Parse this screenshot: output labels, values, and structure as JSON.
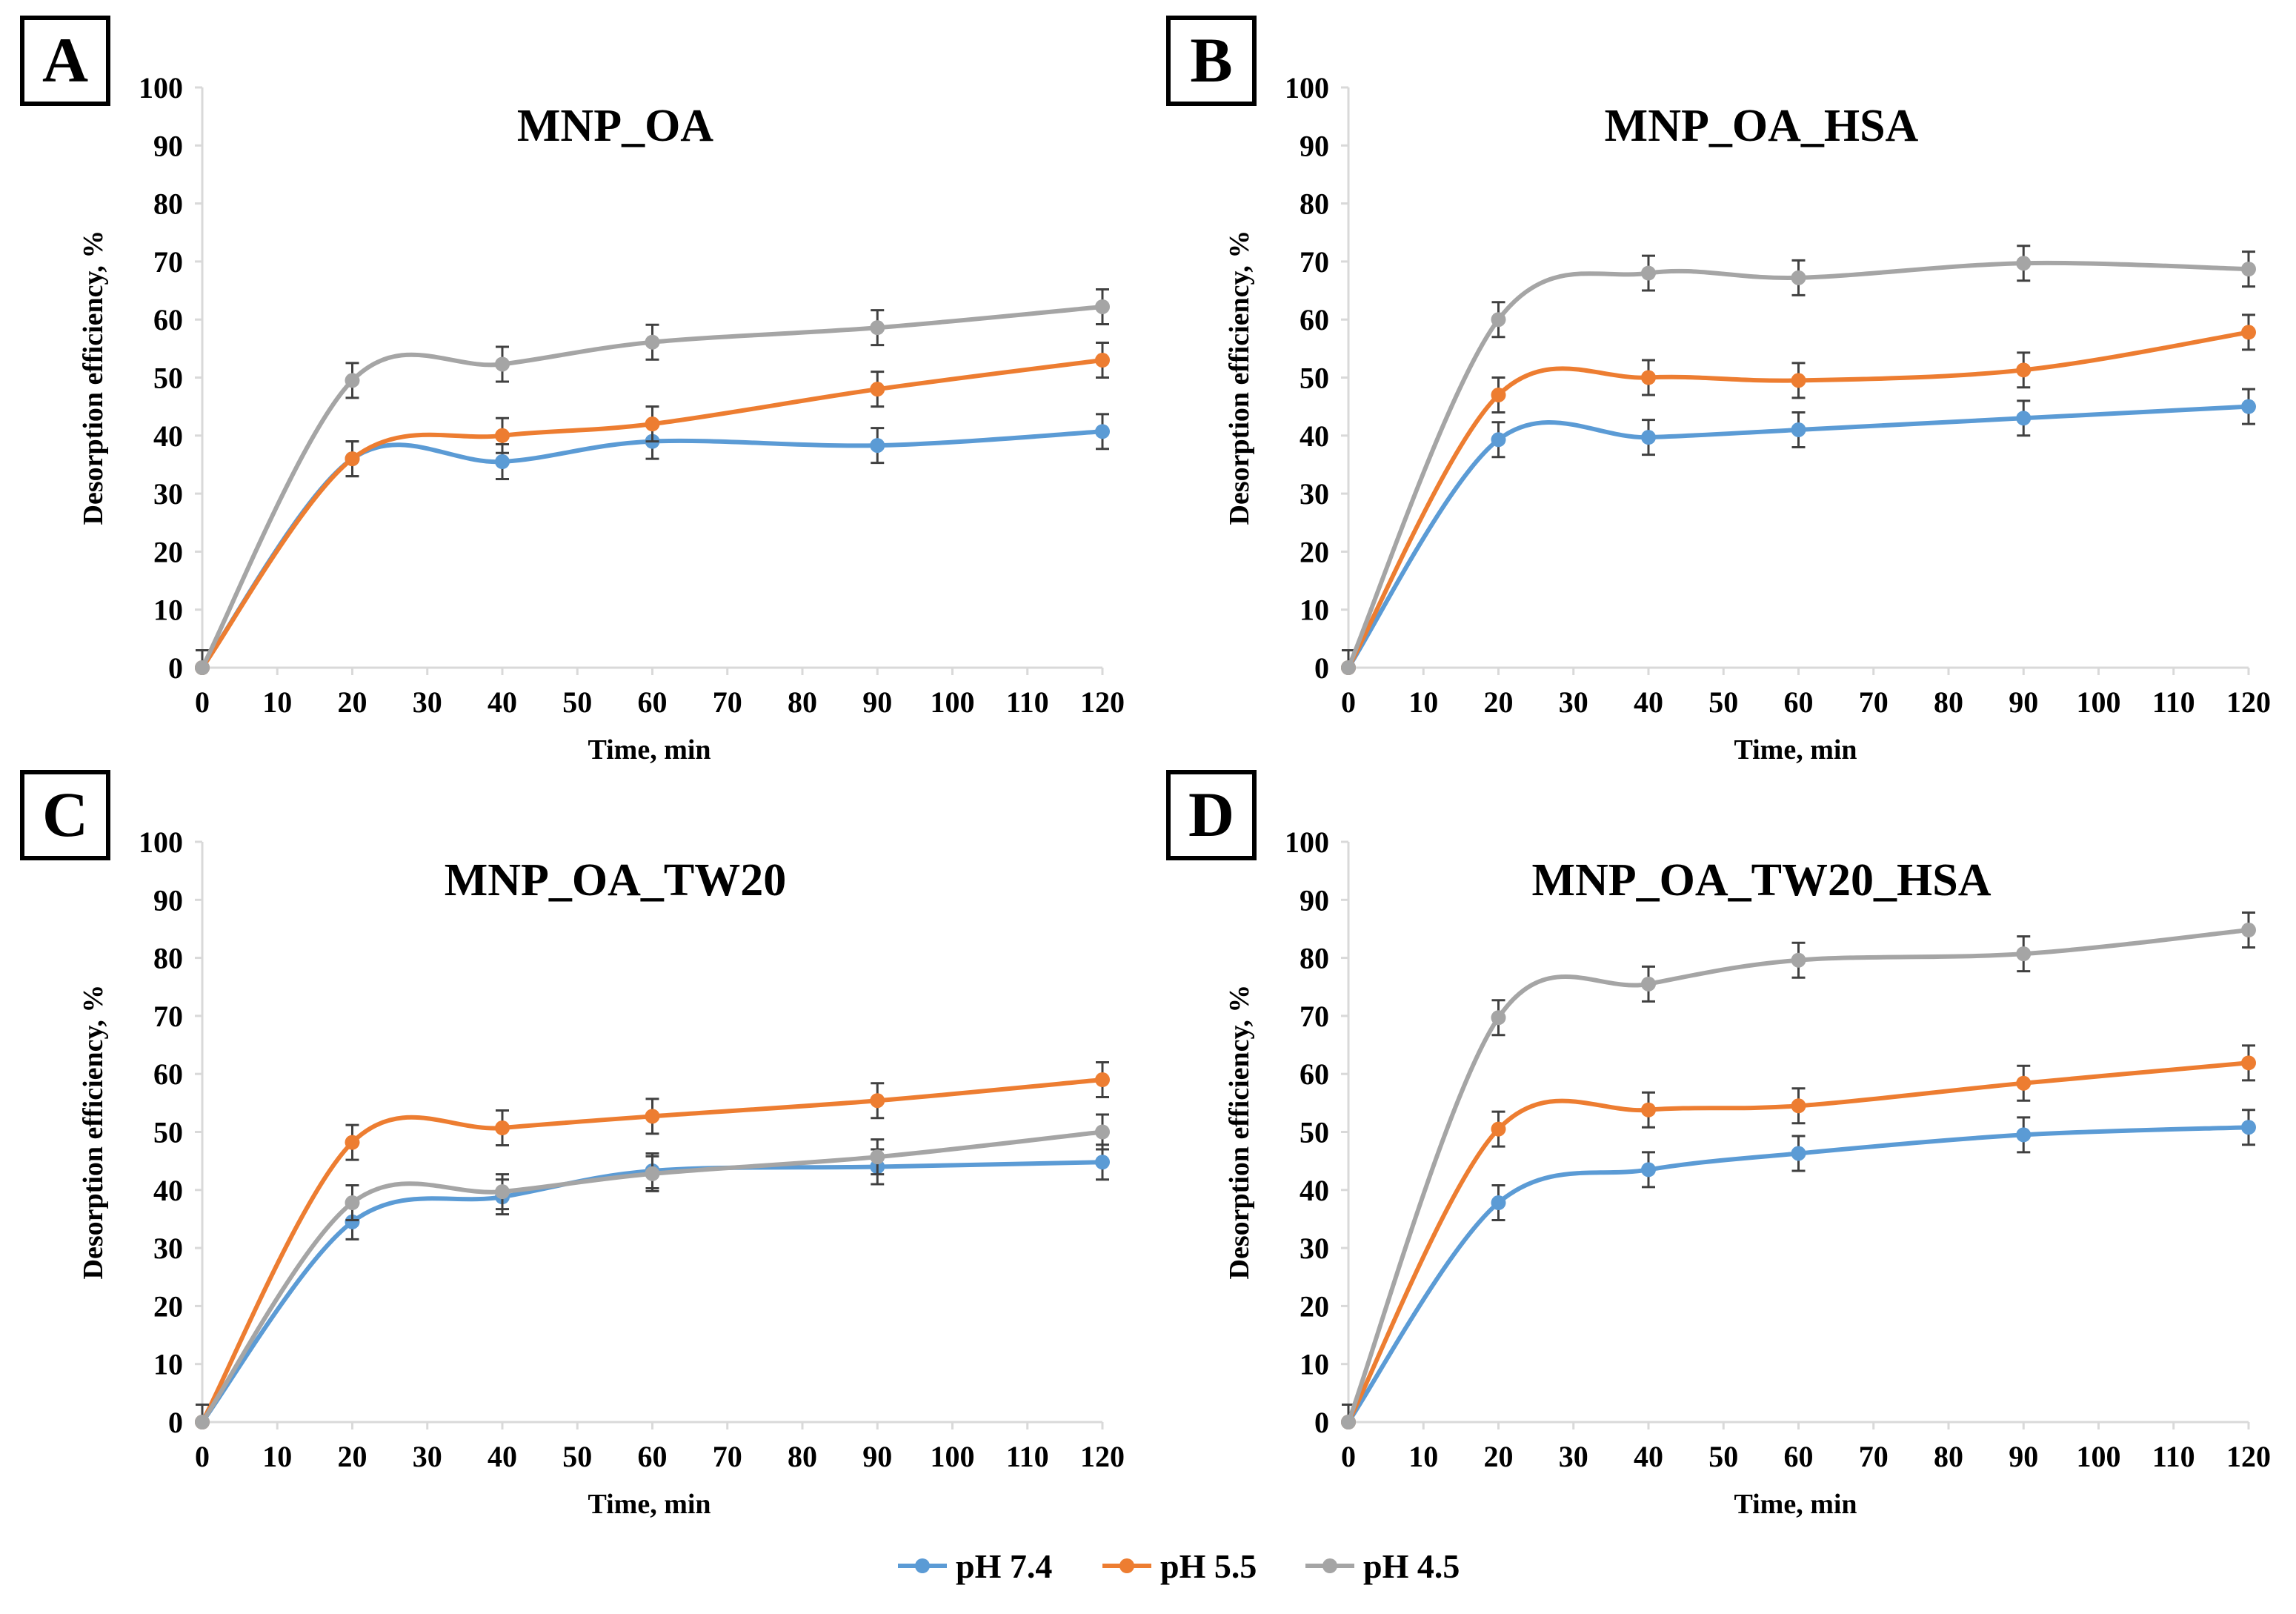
{
  "chart_data": [
    {
      "type": "line",
      "panel_letter": "A",
      "title": "MNP_OA",
      "xlabel": "Time, min",
      "ylabel": "Desorption efficiency, %",
      "x": [
        0,
        20,
        40,
        60,
        90,
        120
      ],
      "xlim": [
        0,
        120
      ],
      "xticks": [
        0,
        10,
        20,
        30,
        40,
        50,
        60,
        70,
        80,
        90,
        100,
        110,
        120
      ],
      "ylim": [
        0,
        100
      ],
      "yticks": [
        0,
        10,
        20,
        30,
        40,
        50,
        60,
        70,
        80,
        90,
        100
      ],
      "grid": false,
      "error_bar": 3,
      "series": [
        {
          "name": "pH 7.4",
          "values": [
            0,
            36,
            35.5,
            39,
            38.3,
            40.7
          ]
        },
        {
          "name": "pH 5.5",
          "values": [
            0,
            36,
            40,
            42,
            48,
            53
          ]
        },
        {
          "name": "pH 4.5",
          "values": [
            0,
            49.5,
            52.3,
            56.1,
            58.6,
            62.2
          ]
        }
      ]
    },
    {
      "type": "line",
      "panel_letter": "B",
      "title": "MNP_OA_HSA",
      "xlabel": "Time, min",
      "ylabel": "Desorption efficiency, %",
      "x": [
        0,
        20,
        40,
        60,
        90,
        120
      ],
      "xlim": [
        0,
        120
      ],
      "xticks": [
        0,
        10,
        20,
        30,
        40,
        50,
        60,
        70,
        80,
        90,
        100,
        110,
        120
      ],
      "ylim": [
        0,
        100
      ],
      "yticks": [
        0,
        10,
        20,
        30,
        40,
        50,
        60,
        70,
        80,
        90,
        100
      ],
      "grid": false,
      "error_bar": 3,
      "series": [
        {
          "name": "pH 7.4",
          "values": [
            0,
            39.3,
            39.7,
            41,
            43,
            45
          ]
        },
        {
          "name": "pH 5.5",
          "values": [
            0,
            47,
            50,
            49.5,
            51.3,
            57.8
          ]
        },
        {
          "name": "pH 4.5",
          "values": [
            0,
            60,
            68,
            67.2,
            69.7,
            68.7
          ]
        }
      ]
    },
    {
      "type": "line",
      "panel_letter": "C",
      "title": "MNP_OA_TW20",
      "xlabel": "Time, min",
      "ylabel": "Desorption efficiency, %",
      "x": [
        0,
        20,
        40,
        60,
        90,
        120
      ],
      "xlim": [
        0,
        120
      ],
      "xticks": [
        0,
        10,
        20,
        30,
        40,
        50,
        60,
        70,
        80,
        90,
        100,
        110,
        120
      ],
      "ylim": [
        0,
        100
      ],
      "yticks": [
        0,
        10,
        20,
        30,
        40,
        50,
        60,
        70,
        80,
        90,
        100
      ],
      "grid": false,
      "error_bar": 3,
      "series": [
        {
          "name": "pH 7.4",
          "values": [
            0,
            34.5,
            38.8,
            43.3,
            44,
            44.8
          ]
        },
        {
          "name": "pH 5.5",
          "values": [
            0,
            48.2,
            50.7,
            52.7,
            55.4,
            59
          ]
        },
        {
          "name": "pH 4.5",
          "values": [
            0,
            37.8,
            39.7,
            42.8,
            45.7,
            50
          ]
        }
      ]
    },
    {
      "type": "line",
      "panel_letter": "D",
      "title": "MNP_OA_TW20_HSA",
      "xlabel": "Time, min",
      "ylabel": "Desorption efficiency, %",
      "x": [
        0,
        20,
        40,
        60,
        90,
        120
      ],
      "xlim": [
        0,
        120
      ],
      "xticks": [
        0,
        10,
        20,
        30,
        40,
        50,
        60,
        70,
        80,
        90,
        100,
        110,
        120
      ],
      "ylim": [
        0,
        100
      ],
      "yticks": [
        0,
        10,
        20,
        30,
        40,
        50,
        60,
        70,
        80,
        90,
        100
      ],
      "grid": false,
      "error_bar": 3,
      "series": [
        {
          "name": "pH 7.4",
          "values": [
            0,
            37.8,
            43.5,
            46.3,
            49.5,
            50.8
          ]
        },
        {
          "name": "pH 5.5",
          "values": [
            0,
            50.5,
            53.8,
            54.5,
            58.4,
            61.9
          ]
        },
        {
          "name": "pH 4.5",
          "values": [
            0,
            69.7,
            75.5,
            79.6,
            80.7,
            84.8
          ]
        }
      ]
    }
  ],
  "legend": {
    "position": "bottom-center",
    "items": [
      {
        "label": "pH 7.4",
        "color": "#5B9BD5"
      },
      {
        "label": "pH 5.5",
        "color": "#ED7D31"
      },
      {
        "label": "pH 4.5",
        "color": "#A5A5A5"
      }
    ]
  },
  "colors": {
    "axis": "#D9D9D9",
    "error_bar": "#404040",
    "text": "#000000"
  }
}
